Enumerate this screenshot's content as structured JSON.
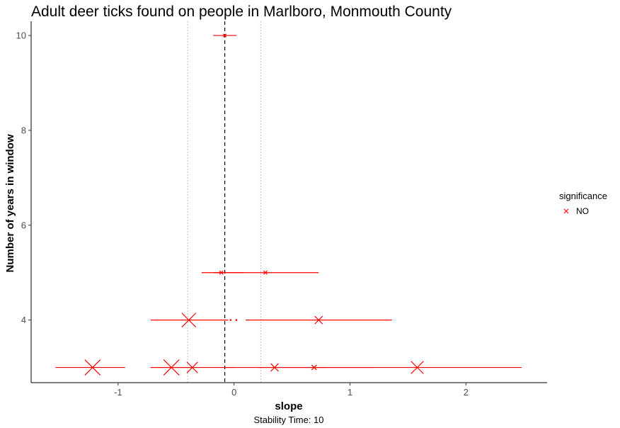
{
  "chart_data": {
    "type": "scatter",
    "title": "Adult deer ticks found on people in Marlboro, Monmouth County",
    "xlabel": "slope",
    "ylabel": "Number of years in window",
    "caption": "Stability Time: 10",
    "xlim": [
      -1.75,
      2.7
    ],
    "ylim": [
      2.68,
      10.3
    ],
    "xticks": [
      -1,
      0,
      1,
      2
    ],
    "xtick_labels": [
      "-1",
      "0",
      "1",
      "2"
    ],
    "yticks": [
      4,
      6,
      8,
      10
    ],
    "ytick_labels": [
      "4",
      "6",
      "8",
      "10"
    ],
    "grid": false,
    "reference_lines": {
      "dashed_x": -0.08,
      "dotted_x": [
        -0.4,
        0.23
      ]
    },
    "legend": {
      "title": "significance",
      "position": "right",
      "entries": [
        {
          "label": "NO",
          "marker": "x",
          "color": "#ff0000"
        }
      ]
    },
    "color": "#ff0000",
    "points": [
      {
        "y": 10,
        "x": -0.08,
        "lo": -0.18,
        "hi": 0.02,
        "size": 1
      },
      {
        "y": 5,
        "x": -0.11,
        "lo": -0.28,
        "hi": 0.08,
        "size": 1.2
      },
      {
        "y": 5,
        "x": 0.27,
        "lo": -0.18,
        "hi": 0.73,
        "size": 1.2
      },
      {
        "y": 4,
        "x": -0.39,
        "lo": -0.72,
        "hi": -0.05,
        "size": 4.5
      },
      {
        "y": 4,
        "x": 0.73,
        "lo": 0.1,
        "hi": 1.36,
        "size": 2.5
      },
      {
        "y": 4,
        "x": -0.03,
        "lo": -0.03,
        "hi": -0.03,
        "size": 0.5
      },
      {
        "y": 4,
        "x": 0.02,
        "lo": 0.02,
        "hi": 0.02,
        "size": 0.5
      },
      {
        "y": 3,
        "x": -1.22,
        "lo": -1.54,
        "hi": -0.94,
        "size": 5
      },
      {
        "y": 3,
        "x": -0.54,
        "lo": -0.72,
        "hi": -0.36,
        "size": 5
      },
      {
        "y": 3,
        "x": -0.36,
        "lo": -0.72,
        "hi": 0.0,
        "size": 3.5
      },
      {
        "y": 3,
        "x": 0.35,
        "lo": -0.1,
        "hi": 0.8,
        "size": 2.5
      },
      {
        "y": 3,
        "x": 0.69,
        "lo": 0.2,
        "hi": 1.2,
        "size": 1.6
      },
      {
        "y": 3,
        "x": 1.58,
        "lo": 0.7,
        "hi": 2.48,
        "size": 4
      }
    ]
  }
}
